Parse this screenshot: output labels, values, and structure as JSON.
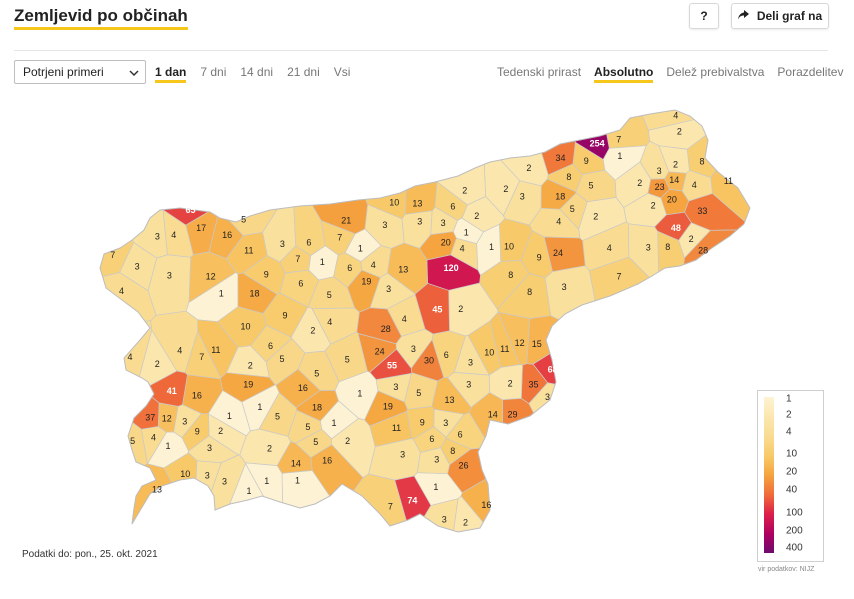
{
  "header": {
    "title": "Zemljevid po občinah",
    "help_label": "?",
    "share_label": "Deli graf na"
  },
  "controls": {
    "select_value": "Potrjeni primeri",
    "time_tabs": [
      {
        "label": "1 dan",
        "active": true
      },
      {
        "label": "7 dni",
        "active": false
      },
      {
        "label": "14 dni",
        "active": false
      },
      {
        "label": "21 dni",
        "active": false
      },
      {
        "label": "Vsi",
        "active": false
      }
    ],
    "mode_tabs": [
      {
        "label": "Tedenski prirast",
        "active": false
      },
      {
        "label": "Absolutno",
        "active": true
      },
      {
        "label": "Delež prebivalstva",
        "active": false
      },
      {
        "label": "Porazdelitev",
        "active": false
      }
    ]
  },
  "map": {
    "region": "Slovenia",
    "unit": "občine",
    "color_scale": {
      "low": "#fdf2cf",
      "mid": "#f0573c",
      "high": "#86006b"
    },
    "values": [
      1,
      2,
      3,
      2,
      1,
      3,
      2,
      6,
      1,
      2,
      1,
      2,
      10,
      3,
      8,
      2,
      1,
      4,
      8,
      3,
      2,
      1,
      3,
      2,
      1,
      5,
      3,
      2,
      3,
      6,
      3,
      3,
      2,
      4,
      4,
      7,
      1,
      3,
      3,
      5,
      8,
      12,
      3,
      9,
      24,
      10,
      14,
      2,
      2,
      3,
      2,
      3,
      4,
      4,
      5,
      3,
      2,
      33,
      7,
      24,
      17,
      30,
      68,
      35,
      28,
      13,
      3,
      8,
      10,
      18,
      13,
      9,
      7,
      11,
      11,
      21,
      11,
      2,
      1,
      16,
      16,
      1,
      4,
      5,
      7,
      8,
      10,
      9,
      13,
      15,
      10,
      28,
      74,
      5,
      2,
      2,
      4,
      9,
      3,
      18,
      19,
      7,
      1,
      3,
      6,
      55,
      12,
      14,
      254,
      23,
      3,
      6,
      4,
      5,
      1,
      5,
      4,
      4,
      7,
      6,
      37,
      5,
      11,
      3,
      2,
      12,
      16,
      6,
      3,
      19,
      14,
      3,
      9,
      8,
      2,
      16,
      11,
      5,
      48,
      6,
      20,
      9,
      45,
      34,
      5,
      4,
      20,
      3,
      29,
      4,
      65,
      5,
      7,
      13,
      4,
      5,
      1,
      41,
      18,
      3,
      1,
      3,
      6,
      16,
      19,
      1,
      120,
      26
    ]
  },
  "legend": {
    "labels": [
      "1",
      "2",
      "4",
      "10",
      "20",
      "40",
      "100",
      "200",
      "400"
    ],
    "source": "vir podatkov: NIJZ"
  },
  "footer": {
    "data_date": "Podatki do: pon., 25. okt. 2021"
  }
}
